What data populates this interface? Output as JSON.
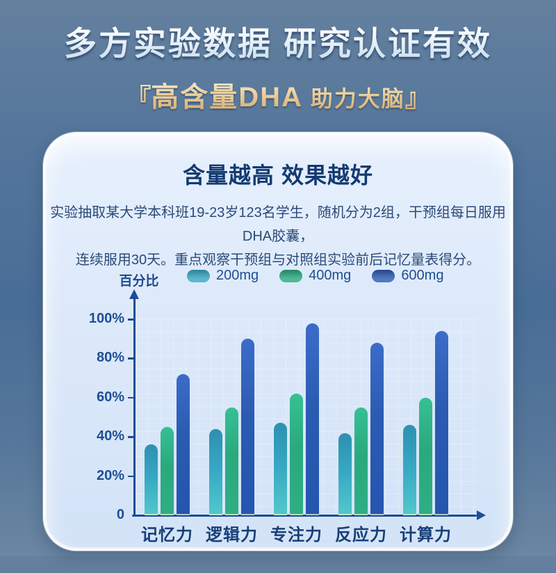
{
  "header": {
    "title": "多方实验数据 研究认证有效",
    "subtitle_bracket_open": "『",
    "subtitle_main": "高含量DHA",
    "subtitle_sub": "助力大脑",
    "subtitle_bracket_close": "』"
  },
  "card": {
    "title": "含量越高 效果越好",
    "desc_line1": "实验抽取某大学本科班19-23岁123名学生，随机分为2组，干预组每日服用DHA胶囊，",
    "desc_line2": "连续服用30天。重点观察干预组与对照组实验前后记忆量表得分。"
  },
  "chart_data": {
    "type": "bar",
    "title": "含量越高 效果越好",
    "ylabel": "百分比",
    "xlabel": "",
    "categories": [
      "记忆力",
      "逻辑力",
      "专注力",
      "反应力",
      "计算力"
    ],
    "series": [
      {
        "name": "200mg",
        "color": "#36a7c3",
        "gradient_top": "#2d90b0",
        "gradient_bottom": "#52c8cc",
        "values": [
          36,
          44,
          47,
          42,
          46
        ]
      },
      {
        "name": "400mg",
        "color": "#2aa97d",
        "gradient_top": "#36c094",
        "gradient_bottom": "#2fae85",
        "values": [
          45,
          55,
          62,
          55,
          60
        ]
      },
      {
        "name": "600mg",
        "color": "#2b5ab1",
        "gradient_top": "#3c6cc8",
        "gradient_bottom": "#2456b0",
        "values": [
          72,
          90,
          98,
          88,
          94
        ]
      }
    ],
    "yticks": [
      {
        "value": 0,
        "label": "0"
      },
      {
        "value": 20,
        "label": "20%"
      },
      {
        "value": 40,
        "label": "40%"
      },
      {
        "value": 60,
        "label": "60%"
      },
      {
        "value": 80,
        "label": "80%"
      },
      {
        "value": 100,
        "label": "100%"
      }
    ],
    "ylim": [
      0,
      100
    ],
    "grid": true,
    "legend_position": "top",
    "colors": {
      "axis": "#1d4c96",
      "tick_text": "#1d5095",
      "category_text": "#173f78",
      "accent_gold": "#e2b87f",
      "card_background": "#dce9fa",
      "page_background": "#4c7096"
    }
  }
}
